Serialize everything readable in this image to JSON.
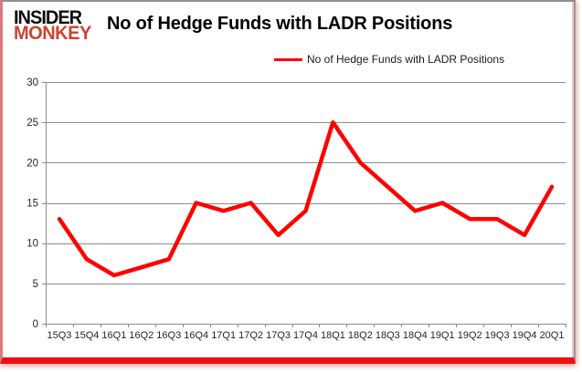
{
  "logo": {
    "line1": "INSIDER",
    "line2": "MONKEY"
  },
  "title": "No of Hedge Funds with LADR Positions",
  "legend": {
    "label": "No of Hedge Funds with LADR Positions"
  },
  "colors": {
    "line": "#FF0000",
    "grid": "#8c8c8c",
    "axis_text": "#262626",
    "logo_red": "#cb4431",
    "frame_bottom": "#ee0f0f"
  },
  "chart_data": {
    "type": "line",
    "title": "No of Hedge Funds with LADR Positions",
    "categories": [
      "15Q3",
      "15Q4",
      "16Q1",
      "16Q2",
      "16Q3",
      "16Q4",
      "17Q1",
      "17Q2",
      "17Q3",
      "17Q4",
      "18Q1",
      "18Q2",
      "18Q3",
      "18Q4",
      "19Q1",
      "19Q2",
      "19Q3",
      "19Q4",
      "20Q1"
    ],
    "series": [
      {
        "name": "No of Hedge Funds with LADR Positions",
        "color": "#FF0000",
        "values": [
          13,
          8,
          6,
          7,
          8,
          15,
          14,
          15,
          11,
          14,
          25,
          20,
          17,
          14,
          15,
          13,
          13,
          11,
          17
        ]
      }
    ],
    "xlabel": "",
    "ylabel": "",
    "ylim": [
      0,
      30
    ],
    "yticks": [
      0,
      5,
      10,
      15,
      20,
      25,
      30
    ],
    "grid": "horizontal",
    "legend_position": "top"
  }
}
